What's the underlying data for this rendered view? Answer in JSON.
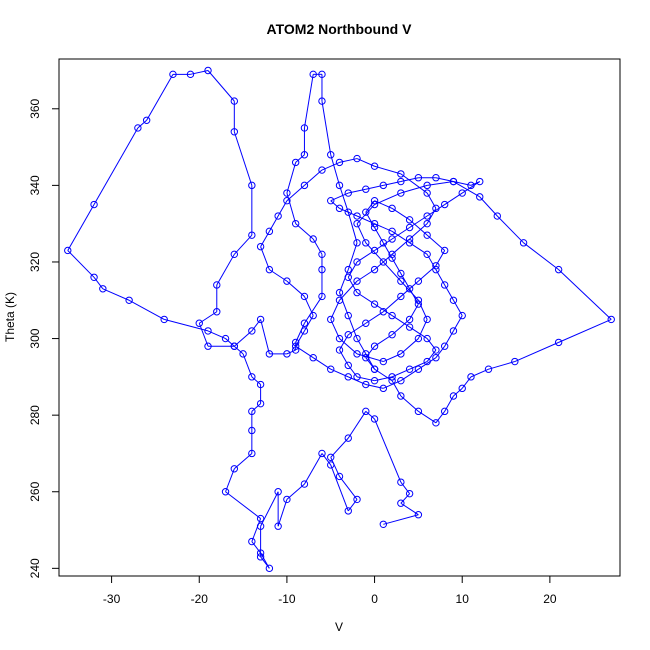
{
  "chart_data": {
    "type": "line",
    "title": "ATOM2 Northbound V",
    "xlabel": "V",
    "ylabel": "Theta (K)",
    "xlim": [
      -36,
      28
    ],
    "ylim": [
      238,
      373
    ],
    "xticks": [
      -30,
      -20,
      -10,
      0,
      10,
      20
    ],
    "yticks": [
      240,
      260,
      280,
      300,
      320,
      340,
      360
    ],
    "grid": false,
    "legend": "none",
    "series_color": "#0000ff",
    "marker": "open-circle",
    "series": [
      {
        "values": [
          [
            1,
            251.5
          ],
          [
            5,
            254
          ],
          [
            3,
            257
          ],
          [
            4,
            259.5
          ],
          [
            3,
            262.5
          ],
          [
            0,
            279
          ],
          [
            -1,
            281
          ],
          [
            -3,
            274
          ],
          [
            -5,
            269
          ],
          [
            -4,
            264
          ],
          [
            -2,
            258
          ],
          [
            -3,
            255
          ],
          [
            -5,
            267
          ],
          [
            -6,
            270
          ],
          [
            -8,
            262
          ],
          [
            -10,
            258
          ],
          [
            -11,
            251
          ],
          [
            -11,
            260
          ],
          [
            -13,
            251
          ],
          [
            -13,
            243
          ],
          [
            -12,
            240
          ],
          [
            -13,
            244
          ],
          [
            -14,
            247
          ],
          [
            -13,
            253
          ],
          [
            -17,
            260
          ],
          [
            -16,
            266
          ],
          [
            -14,
            270
          ],
          [
            -14,
            276
          ],
          [
            -14,
            281
          ],
          [
            -13,
            283
          ],
          [
            -13,
            288
          ],
          [
            -14,
            290
          ],
          [
            -15,
            296
          ],
          [
            -16,
            298
          ],
          [
            -17,
            300
          ],
          [
            -19,
            302
          ],
          [
            -24,
            305
          ],
          [
            -28,
            310
          ],
          [
            -31,
            313
          ],
          [
            -32,
            316
          ],
          [
            -35,
            323
          ],
          [
            -32,
            335
          ],
          [
            -27,
            355
          ],
          [
            -26,
            357
          ],
          [
            -23,
            369
          ],
          [
            -21,
            369
          ],
          [
            -19,
            370
          ],
          [
            -16,
            362
          ],
          [
            -16,
            354
          ],
          [
            -14,
            340
          ],
          [
            -14,
            327
          ],
          [
            -16,
            322
          ],
          [
            -18,
            314
          ],
          [
            -18,
            307
          ],
          [
            -20,
            304
          ],
          [
            -19,
            298
          ],
          [
            -16,
            298
          ],
          [
            -14,
            302
          ],
          [
            -13,
            305
          ],
          [
            -12,
            296
          ],
          [
            -10,
            296
          ],
          [
            -9,
            297
          ],
          [
            -9,
            299
          ],
          [
            -8,
            304
          ],
          [
            -6,
            311
          ],
          [
            -6,
            318
          ],
          [
            -6,
            322
          ],
          [
            -7,
            326
          ],
          [
            -9,
            330
          ],
          [
            -10,
            338
          ],
          [
            -9,
            346
          ],
          [
            -8,
            348
          ],
          [
            -8,
            355
          ],
          [
            -7,
            369
          ],
          [
            -6,
            369
          ],
          [
            -6,
            362
          ],
          [
            -5,
            348
          ],
          [
            -4,
            340
          ],
          [
            -3,
            333
          ],
          [
            -2,
            325
          ],
          [
            -3,
            318
          ],
          [
            -4,
            312
          ],
          [
            -3,
            306
          ],
          [
            -2,
            300
          ],
          [
            -1,
            296
          ],
          [
            0,
            292
          ],
          [
            2,
            289
          ],
          [
            3,
            285
          ],
          [
            5,
            281
          ],
          [
            7,
            278
          ],
          [
            8,
            281
          ],
          [
            9,
            285
          ],
          [
            10,
            287
          ],
          [
            11,
            290
          ],
          [
            13,
            292
          ],
          [
            16,
            294
          ],
          [
            21,
            299
          ],
          [
            27,
            305
          ],
          [
            21,
            318
          ],
          [
            17,
            325
          ],
          [
            14,
            332
          ],
          [
            12,
            337
          ],
          [
            9,
            341
          ],
          [
            6,
            340
          ],
          [
            3,
            338
          ],
          [
            0,
            335
          ],
          [
            -2,
            330
          ],
          [
            -1,
            325
          ],
          [
            1,
            320
          ],
          [
            3,
            315
          ],
          [
            5,
            310
          ],
          [
            6,
            305
          ],
          [
            5,
            300
          ],
          [
            3,
            296
          ],
          [
            1,
            294
          ],
          [
            -2,
            296
          ],
          [
            -4,
            300
          ],
          [
            -5,
            305
          ],
          [
            -4,
            310
          ],
          [
            -2,
            315
          ],
          [
            0,
            318
          ],
          [
            2,
            322
          ],
          [
            4,
            326
          ],
          [
            6,
            330
          ],
          [
            7,
            334
          ],
          [
            6,
            338
          ],
          [
            3,
            343
          ],
          [
            0,
            345
          ],
          [
            -2,
            347
          ],
          [
            -4,
            346
          ],
          [
            -6,
            344
          ],
          [
            -8,
            340
          ],
          [
            -10,
            336
          ],
          [
            -11,
            332
          ],
          [
            -12,
            328
          ],
          [
            -13,
            324
          ],
          [
            -12,
            318
          ],
          [
            -10,
            315
          ],
          [
            -8,
            311
          ],
          [
            -7,
            306
          ],
          [
            -8,
            302
          ],
          [
            -9,
            298
          ],
          [
            -7,
            295
          ],
          [
            -5,
            292
          ],
          [
            -3,
            290
          ],
          [
            -1,
            288
          ],
          [
            1,
            287
          ],
          [
            3,
            289
          ],
          [
            5,
            292
          ],
          [
            7,
            295
          ],
          [
            8,
            298
          ],
          [
            9,
            302
          ],
          [
            10,
            306
          ],
          [
            9,
            310
          ],
          [
            8,
            314
          ],
          [
            7,
            318
          ],
          [
            6,
            322
          ],
          [
            4,
            325
          ],
          [
            2,
            328
          ],
          [
            0,
            330
          ],
          [
            -2,
            332
          ],
          [
            -4,
            334
          ],
          [
            -5,
            336
          ],
          [
            -3,
            338
          ],
          [
            -1,
            339
          ],
          [
            1,
            340
          ],
          [
            3,
            341
          ],
          [
            5,
            342
          ],
          [
            7,
            342
          ],
          [
            9,
            341
          ],
          [
            11,
            340
          ],
          [
            12,
            341
          ],
          [
            10,
            338
          ],
          [
            8,
            335
          ],
          [
            6,
            332
          ],
          [
            4,
            329
          ],
          [
            2,
            326
          ],
          [
            0,
            323
          ],
          [
            -2,
            320
          ],
          [
            -3,
            316
          ],
          [
            -2,
            312
          ],
          [
            0,
            309
          ],
          [
            2,
            306
          ],
          [
            4,
            303
          ],
          [
            6,
            300
          ],
          [
            7,
            297
          ],
          [
            6,
            294
          ],
          [
            4,
            292
          ],
          [
            2,
            290
          ],
          [
            0,
            289
          ],
          [
            -2,
            290
          ],
          [
            -3,
            293
          ],
          [
            -4,
            297
          ],
          [
            -3,
            301
          ],
          [
            -1,
            304
          ],
          [
            1,
            307
          ],
          [
            3,
            311
          ],
          [
            5,
            315
          ],
          [
            7,
            319
          ],
          [
            8,
            323
          ],
          [
            6,
            327
          ],
          [
            4,
            331
          ],
          [
            2,
            334
          ],
          [
            0,
            336
          ],
          [
            -1,
            333
          ],
          [
            0,
            329
          ],
          [
            1,
            325
          ],
          [
            2,
            321
          ],
          [
            3,
            317
          ],
          [
            4,
            313
          ],
          [
            5,
            309
          ],
          [
            4,
            305
          ],
          [
            2,
            301
          ],
          [
            0,
            298
          ],
          [
            -1,
            295
          ],
          [
            0,
            292
          ]
        ]
      }
    ]
  }
}
